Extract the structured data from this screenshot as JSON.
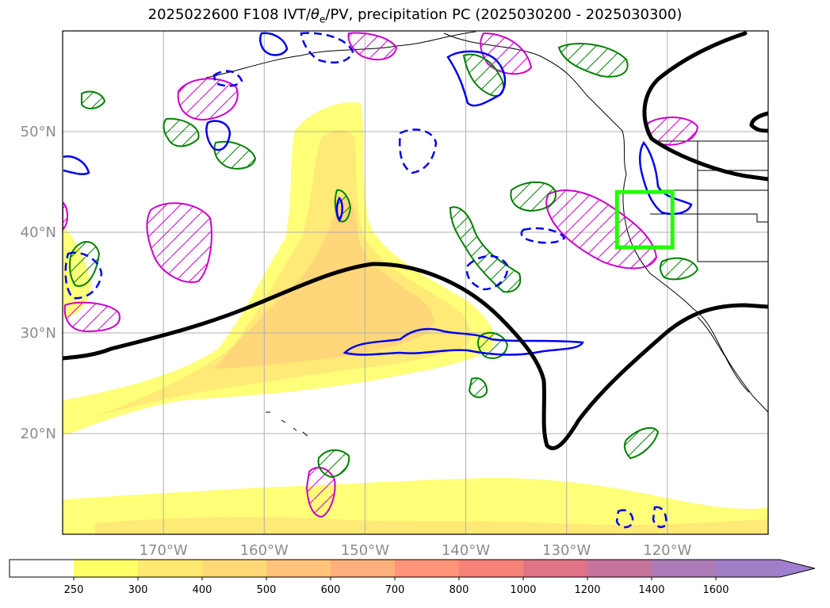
{
  "title": {
    "prefix": "2025022600 F108 IVT/",
    "theta": "θ",
    "theta_sub": "e",
    "suffix": "/PV, precipitation PC (2025030200 - 2025030300)"
  },
  "map": {
    "extent": {
      "lon_min": -180,
      "lon_max": -110,
      "lat_min": 10,
      "lat_max": 60
    },
    "lat_labels": [
      {
        "lat": 50,
        "text": "50°N"
      },
      {
        "lat": 40,
        "text": "40°N"
      },
      {
        "lat": 30,
        "text": "30°N"
      },
      {
        "lat": 20,
        "text": "20°N"
      }
    ],
    "lon_labels": [
      {
        "lon": -170,
        "text": "170°W"
      },
      {
        "lon": -160,
        "text": "160°W"
      },
      {
        "lon": -150,
        "text": "150°W"
      },
      {
        "lon": -140,
        "text": "140°W"
      },
      {
        "lon": -130,
        "text": "130°W"
      },
      {
        "lon": -120,
        "text": "120°W"
      }
    ],
    "grid_lats": [
      20,
      30,
      40,
      50
    ],
    "grid_lons": [
      -170,
      -160,
      -150,
      -140,
      -130,
      -120
    ],
    "target_box": {
      "lon_min": -125,
      "lon_max": -119.5,
      "lat_min": 38.5,
      "lat_max": 44,
      "color": "#22ff00"
    },
    "colors": {
      "pv_line": "#000000",
      "theta_e_pos": "#0000ee",
      "precip_pos": "#008000",
      "precip_neg": "#cc00cc",
      "grid": "#b0b0b0"
    }
  },
  "colorbar": {
    "levels": [
      "250",
      "300",
      "400",
      "500",
      "600",
      "700",
      "800",
      "1000",
      "1200",
      "1400",
      "1600"
    ],
    "colors": [
      "#ffff66",
      "#ffe970",
      "#ffd976",
      "#ffc47a",
      "#ffb07c",
      "#ff9478",
      "#f78277",
      "#e17386",
      "#c6749c",
      "#ad7bb8",
      "#a27ec6"
    ],
    "extend_color": "#a07fd0"
  }
}
